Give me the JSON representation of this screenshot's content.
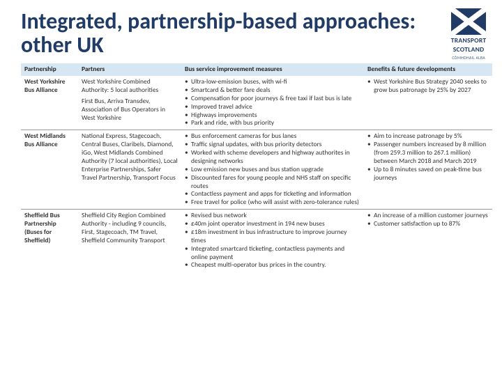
{
  "title": "Integrated, partnership-based approaches: other UK",
  "logo": {
    "line1": "TRANSPORT",
    "line2": "SCOTLAND",
    "sub": "CÒMHDHAIL ALBA",
    "saltire_bg": "#1f3b66",
    "saltire_cross": "#ffffff"
  },
  "colors": {
    "title": "#1f3b66",
    "header_bg": "#d6e6f2",
    "row_border": "#999999",
    "text": "#333333"
  },
  "table": {
    "headers": [
      "Partnership",
      "Partners",
      "Bus service improvement measures",
      "Benefits & future developments"
    ],
    "rows": [
      {
        "partnership": "West Yorkshire Bus Alliance",
        "partners": [
          "West Yorkshire Combined Authority: 5 local authorities",
          "First Bus, Arriva Transdev, Association of Bus Operators in West Yorkshire"
        ],
        "measures": [
          "Ultra-low-emission buses, with wi-fi",
          "Smartcard & better fare deals",
          "Compensation for poor journeys & free taxi if last bus is late",
          "Improved travel advice",
          "Highways improvements",
          "Park and ride, with bus priority"
        ],
        "benefits": [
          "West Yorkshire Bus Strategy 2040 seeks to grow bus patronage by 25% by 2027"
        ]
      },
      {
        "partnership": "West Midlands Bus Alliance",
        "partners": [
          "National Express, Stagecoach, Central Buses, Claribels, Diamond, iGo, West Midlands Combined Authority (7 local authorities), Local Enterprise Partnerships, Safer Travel Partnership, Transport Focus"
        ],
        "measures": [
          "Bus enforcement cameras for bus lanes",
          "Traffic signal updates, with bus priority detectors",
          "Worked with scheme developers and highway authorites in designing networks",
          "Low emission new buses and bus station upgrade",
          "Discounted fares for young people and NHS staff on specific routes",
          "Contactless payment and apps for ticketing and information",
          "Free travel for police (who will assist with zero-tolerance rules)"
        ],
        "benefits": [
          "Aim to increase patronage by 5%",
          "Passenger numbers increased by 8 million (from 259.3 million to 267.1 million) between March 2018 and March 2019",
          "Up to 8 minutes saved on peak-time bus journeys"
        ]
      },
      {
        "partnership": "Sheffield Bus Partnership (Buses for Sheffield)",
        "partners": [
          "Sheffield City Region Combined Authority - including 9 councils, First, Stagecoach, TM Travel, Sheffield Community Transport"
        ],
        "measures": [
          "Revised bus network",
          "£40m joint operator investment in 194 new buses",
          "£18m investment in bus infrastructure to improve journey times",
          "Integrated smartcard ticketing, contactless payments and online payment",
          "Cheapest multi-operator bus prices in the country."
        ],
        "benefits": [
          "An increase of a million customer journeys",
          "Customer satisfaction up to 87%"
        ]
      }
    ]
  }
}
